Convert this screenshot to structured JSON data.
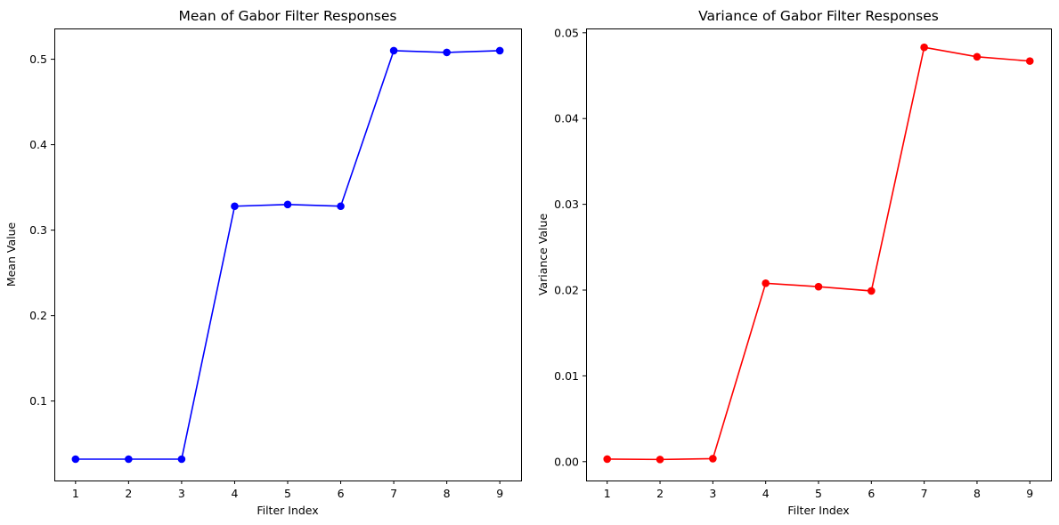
{
  "chart_data": [
    {
      "type": "line",
      "title": "Mean of Gabor Filter Responses",
      "xlabel": "Filter Index",
      "ylabel": "Mean Value",
      "x": [
        1,
        2,
        3,
        4,
        5,
        6,
        7,
        8,
        9
      ],
      "xticks": [
        "1",
        "2",
        "3",
        "4",
        "5",
        "6",
        "7",
        "8",
        "9"
      ],
      "yticks": [
        "0.1",
        "0.2",
        "0.3",
        "0.4",
        "0.5"
      ],
      "ytick_values": [
        0.1,
        0.2,
        0.3,
        0.4,
        0.5
      ],
      "xlim": [
        0.6,
        9.4
      ],
      "ylim": [
        0.007,
        0.536
      ],
      "grid": false,
      "series": [
        {
          "values": [
            0.032,
            0.032,
            0.032,
            0.328,
            0.33,
            0.328,
            0.51,
            0.508,
            0.51
          ],
          "color": "#0000ff",
          "marker": "circle"
        }
      ]
    },
    {
      "type": "line",
      "title": "Variance of Gabor Filter Responses",
      "xlabel": "Filter Index",
      "ylabel": "Variance Value",
      "x": [
        1,
        2,
        3,
        4,
        5,
        6,
        7,
        8,
        9
      ],
      "xticks": [
        "1",
        "2",
        "3",
        "4",
        "5",
        "6",
        "7",
        "8",
        "9"
      ],
      "yticks": [
        "0.00",
        "0.01",
        "0.02",
        "0.03",
        "0.04",
        "0.05"
      ],
      "ytick_values": [
        0.0,
        0.01,
        0.02,
        0.03,
        0.04,
        0.05
      ],
      "xlim": [
        0.6,
        9.4
      ],
      "ylim": [
        -0.0022,
        0.0505
      ],
      "grid": false,
      "series": [
        {
          "values": [
            0.0003,
            0.00025,
            0.00035,
            0.0208,
            0.0204,
            0.0199,
            0.0483,
            0.0472,
            0.0467
          ],
          "color": "#ff0000",
          "marker": "circle"
        }
      ]
    }
  ]
}
